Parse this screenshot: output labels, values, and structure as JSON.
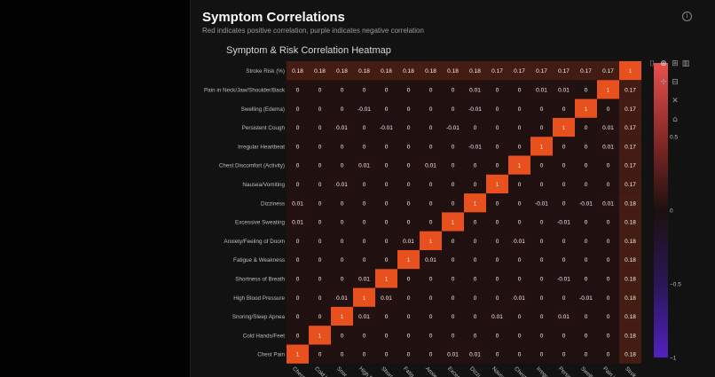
{
  "header": {
    "title": "Symptom Correlations",
    "subtitle": "Red indicates positive correlation, purple indicates negative correlation",
    "info_icon": "info-icon"
  },
  "toolbar": {
    "icons": [
      "camera-icon",
      "zoom-icon",
      "pan-icon",
      "zoom-box-icon",
      "bar-chart-icon",
      "zoom-in-icon",
      "zoom-out-icon",
      "autoscale-icon",
      "reset-axes-icon"
    ]
  },
  "colors": {
    "positive_high": "#e8504c",
    "neutral": "#201010",
    "negative_low": "#4a1fa8",
    "background": "#121212"
  },
  "chart_data": {
    "type": "heatmap",
    "title": "Symptom & Risk Correlation Heatmap",
    "rows_top_to_bottom": [
      "Stroke Risk (%)",
      "Pain in Neck/Jaw/Shoulder/Back",
      "Swelling (Edema)",
      "Persistent Cough",
      "Irregular Heartbeat",
      "Chest Discomfort (Activity)",
      "Nausea/Vomiting",
      "Dizziness",
      "Excessive Sweating",
      "Anxiety/Feeling of Doom",
      "Fatigue & Weakness",
      "Shortness of Breath",
      "High Blood Pressure",
      "Snoring/Sleep Apnea",
      "Cold Hands/Feet",
      "Chest Pain"
    ],
    "columns_left_to_right": [
      "Chest Pain",
      "Cold Hands/Feet",
      "Snoring/Sleep Apnea",
      "High Blood Pressure",
      "Shortness of Breath",
      "Fatigue & Weakness",
      "Anxiety/Feeling of Doom",
      "Excessive Sweating",
      "Dizziness",
      "Nausea/Vomiting",
      "Chest Discomfort (Activity)",
      "Irregular Heartbeat",
      "Persistent Cough",
      "Swelling (Edema)",
      "Pain in Neck/Jaw/Shoulder/Back",
      "Stroke Risk (%)"
    ],
    "column_tick_labels_visible": [
      "Chest",
      "Cold H",
      "Snor",
      "High B",
      "Short",
      "Fatig",
      "Anxie",
      "Exces",
      "Dizzi",
      "Nause",
      "Chest",
      "Irregu",
      "Persis",
      "Swelli",
      "Pain in",
      "Strok"
    ],
    "values": [
      [
        0.18,
        0.18,
        0.18,
        0.18,
        0.18,
        0.18,
        0.18,
        0.18,
        0.18,
        0.17,
        0.17,
        0.17,
        0.17,
        0.17,
        0.17,
        1
      ],
      [
        0,
        0,
        0,
        0,
        0,
        0,
        0,
        0,
        0.01,
        0,
        0,
        0.01,
        0.01,
        0,
        1,
        0.17
      ],
      [
        0,
        0,
        0,
        -0.01,
        0,
        0,
        0,
        0,
        -0.01,
        0,
        0,
        0,
        0,
        1,
        0,
        0.17
      ],
      [
        0,
        0,
        0.01,
        0,
        -0.01,
        0,
        0,
        -0.01,
        0,
        0,
        0,
        0,
        1,
        0,
        0.01,
        0.17
      ],
      [
        0,
        0,
        0,
        0,
        0,
        0,
        0,
        0,
        -0.01,
        0,
        0,
        1,
        0,
        0,
        0.01,
        0.17
      ],
      [
        0,
        0,
        0,
        0.01,
        0,
        0,
        0.01,
        0,
        0,
        0,
        1,
        0,
        0,
        0,
        0,
        0.17
      ],
      [
        0,
        0,
        0.01,
        0,
        0,
        0,
        0,
        0,
        0,
        1,
        0,
        0,
        0,
        0,
        0,
        0.17
      ],
      [
        0.01,
        0,
        0,
        0,
        0,
        0,
        0,
        0,
        1,
        0,
        0,
        -0.01,
        0,
        -0.01,
        0.01,
        0.18
      ],
      [
        0.01,
        0,
        0,
        0,
        0,
        0,
        0,
        1,
        0,
        0,
        0,
        0,
        -0.01,
        0,
        0,
        0.18
      ],
      [
        0,
        0,
        0,
        0,
        0,
        0.01,
        1,
        0,
        0,
        0,
        0.01,
        0,
        0,
        0,
        0,
        0.18
      ],
      [
        0,
        0,
        0,
        0,
        0,
        1,
        0.01,
        0,
        0,
        0,
        0,
        0,
        0,
        0,
        0,
        0.18
      ],
      [
        0,
        0,
        0,
        0.01,
        1,
        0,
        0,
        0,
        0,
        0,
        0,
        0,
        -0.01,
        0,
        0,
        0.18
      ],
      [
        0,
        0,
        0.01,
        1,
        0.01,
        0,
        0,
        0,
        0,
        0,
        0.01,
        0,
        0,
        -0.01,
        0,
        0.18
      ],
      [
        0,
        0,
        1,
        0.01,
        0,
        0,
        0,
        0,
        0,
        0.01,
        0,
        0,
        0.01,
        0,
        0,
        0.18
      ],
      [
        0,
        1,
        0,
        0,
        0,
        0,
        0,
        0,
        0,
        0,
        0,
        0,
        0,
        0,
        0,
        0.18
      ],
      [
        1,
        0,
        0,
        0,
        0,
        0,
        0,
        0.01,
        0.01,
        0,
        0,
        0,
        0,
        0,
        0,
        0.18
      ]
    ],
    "colorscale": {
      "min": -1,
      "max": 1,
      "ticks": [
        0.5,
        0,
        -0.5,
        -1
      ],
      "tick_labels": [
        "0.5",
        "0",
        "−0.5",
        "−1"
      ]
    }
  }
}
